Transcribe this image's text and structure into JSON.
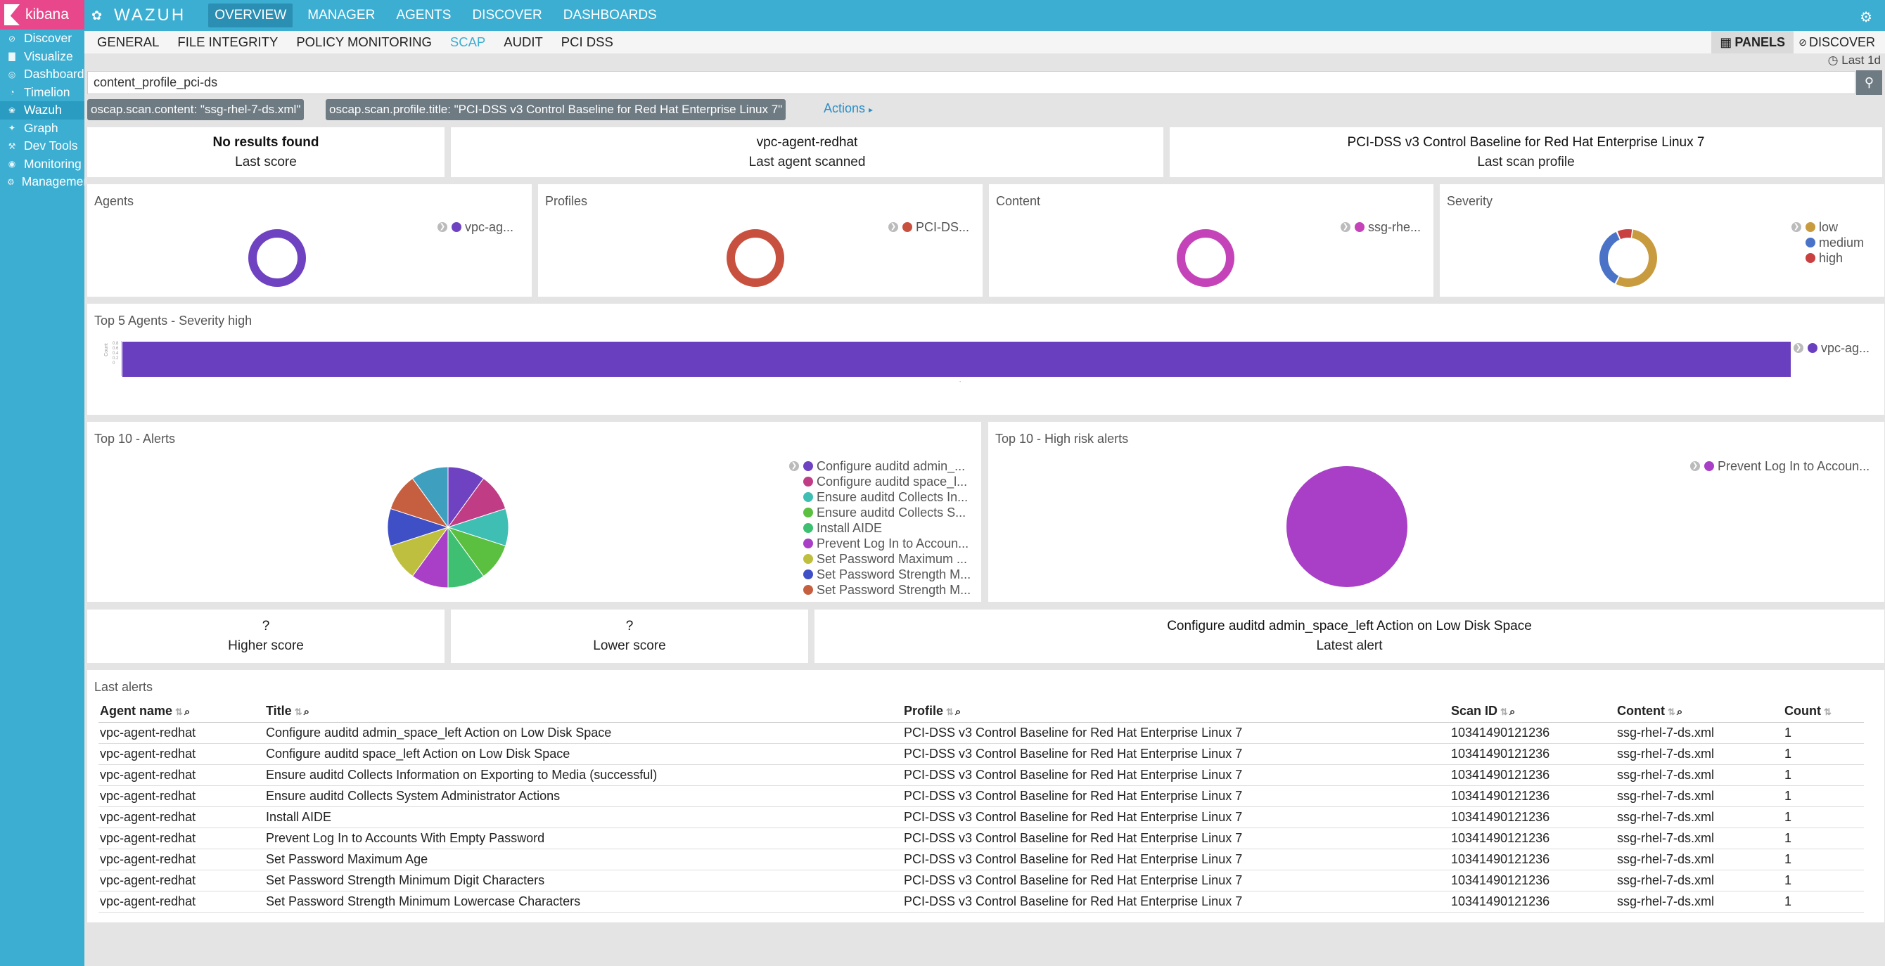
{
  "sidebar": {
    "brand": "kibana",
    "items": [
      {
        "label": "Discover",
        "icon": "compass-icon"
      },
      {
        "label": "Visualize",
        "icon": "bar-chart-icon"
      },
      {
        "label": "Dashboard",
        "icon": "dashboard-icon"
      },
      {
        "label": "Timelion",
        "icon": "timelion-icon"
      },
      {
        "label": "Wazuh",
        "icon": "wazuh-paw-icon"
      },
      {
        "label": "Graph",
        "icon": "graph-icon"
      },
      {
        "label": "Dev Tools",
        "icon": "wrench-icon"
      },
      {
        "label": "Monitoring",
        "icon": "monitoring-icon"
      },
      {
        "label": "Management",
        "icon": "gear-icon"
      }
    ]
  },
  "topbar": {
    "brand": "WAZUH",
    "nav": [
      "OVERVIEW",
      "MANAGER",
      "AGENTS",
      "DISCOVER",
      "DASHBOARDS"
    ]
  },
  "subbar": {
    "tabs": [
      "GENERAL",
      "FILE INTEGRITY",
      "POLICY MONITORING",
      "SCAP",
      "AUDIT",
      "PCI DSS"
    ],
    "panels_label": "PANELS",
    "discover_label": "DISCOVER",
    "time_range": "Last 1d"
  },
  "search": {
    "value": "content_profile_pci-ds"
  },
  "filters": [
    "oscap.scan.content: \"ssg-rhel-7-ds.xml\"",
    "oscap.scan.profile.title: \"PCI-DSS v3 Control Baseline for Red Hat Enterprise Linux 7\""
  ],
  "actions_label": "Actions",
  "metrics_top": [
    {
      "value": "No results found",
      "label": "Last score"
    },
    {
      "value": "vpc-agent-redhat",
      "label": "Last agent scanned"
    },
    {
      "value": "PCI-DSS v3 Control Baseline for Red Hat Enterprise Linux 7",
      "label": "Last scan profile"
    }
  ],
  "donuts": [
    {
      "title": "Agents",
      "legend": [
        {
          "label": "vpc-ag...",
          "color": "#6e42c1"
        }
      ]
    },
    {
      "title": "Profiles",
      "legend": [
        {
          "label": "PCI-DS...",
          "color": "#c8503f"
        }
      ]
    },
    {
      "title": "Content",
      "legend": [
        {
          "label": "ssg-rhe...",
          "color": "#c443b8"
        }
      ]
    },
    {
      "title": "Severity",
      "legend": [
        {
          "label": "low",
          "color": "#c99b3f"
        },
        {
          "label": "medium",
          "color": "#4a73c8"
        },
        {
          "label": "high",
          "color": "#c8403f"
        }
      ]
    }
  ],
  "bar_panel": {
    "title": "Top 5 Agents - Severity high",
    "legend": "vpc-ag...",
    "color": "#6a3fbf",
    "yticks": [
      "0.8",
      "0.6",
      "0.4",
      "0.2",
      "0"
    ]
  },
  "pie_alerts": {
    "title": "Top 10 - Alerts",
    "legend": [
      {
        "label": "Configure auditd admin_...",
        "color": "#6e42c1"
      },
      {
        "label": "Configure auditd space_l...",
        "color": "#c03d86"
      },
      {
        "label": "Ensure auditd Collects In...",
        "color": "#3fbfb3"
      },
      {
        "label": "Ensure auditd Collects S...",
        "color": "#5bbf3f"
      },
      {
        "label": "Install AIDE",
        "color": "#3fbf72"
      },
      {
        "label": "Prevent Log In to Accoun...",
        "color": "#a83fc6"
      },
      {
        "label": "Set Password Maximum ...",
        "color": "#bfbf3f"
      },
      {
        "label": "Set Password Strength M...",
        "color": "#3f4fc6"
      },
      {
        "label": "Set Password Strength M...",
        "color": "#c65f3f"
      }
    ]
  },
  "pie_high": {
    "title": "Top 10 - High risk alerts",
    "legend": [
      {
        "label": "Prevent Log In to Accoun...",
        "color": "#a83fc6"
      }
    ]
  },
  "metrics_bottom": [
    {
      "value": "?",
      "label": "Higher score"
    },
    {
      "value": "?",
      "label": "Lower score"
    },
    {
      "value": "Configure auditd admin_space_left Action on Low Disk Space",
      "label": "Latest alert"
    }
  ],
  "last_alerts": {
    "title": "Last alerts",
    "columns": [
      "Agent name",
      "Title",
      "Profile",
      "Scan ID",
      "Content",
      "Count"
    ],
    "rows": [
      [
        "vpc-agent-redhat",
        "Configure auditd admin_space_left Action on Low Disk Space",
        "PCI-DSS v3 Control Baseline for Red Hat Enterprise Linux 7",
        "10341490121236",
        "ssg-rhel-7-ds.xml",
        "1"
      ],
      [
        "vpc-agent-redhat",
        "Configure auditd space_left Action on Low Disk Space",
        "PCI-DSS v3 Control Baseline for Red Hat Enterprise Linux 7",
        "10341490121236",
        "ssg-rhel-7-ds.xml",
        "1"
      ],
      [
        "vpc-agent-redhat",
        "Ensure auditd Collects Information on Exporting to Media (successful)",
        "PCI-DSS v3 Control Baseline for Red Hat Enterprise Linux 7",
        "10341490121236",
        "ssg-rhel-7-ds.xml",
        "1"
      ],
      [
        "vpc-agent-redhat",
        "Ensure auditd Collects System Administrator Actions",
        "PCI-DSS v3 Control Baseline for Red Hat Enterprise Linux 7",
        "10341490121236",
        "ssg-rhel-7-ds.xml",
        "1"
      ],
      [
        "vpc-agent-redhat",
        "Install AIDE",
        "PCI-DSS v3 Control Baseline for Red Hat Enterprise Linux 7",
        "10341490121236",
        "ssg-rhel-7-ds.xml",
        "1"
      ],
      [
        "vpc-agent-redhat",
        "Prevent Log In to Accounts With Empty Password",
        "PCI-DSS v3 Control Baseline for Red Hat Enterprise Linux 7",
        "10341490121236",
        "ssg-rhel-7-ds.xml",
        "1"
      ],
      [
        "vpc-agent-redhat",
        "Set Password Maximum Age",
        "PCI-DSS v3 Control Baseline for Red Hat Enterprise Linux 7",
        "10341490121236",
        "ssg-rhel-7-ds.xml",
        "1"
      ],
      [
        "vpc-agent-redhat",
        "Set Password Strength Minimum Digit Characters",
        "PCI-DSS v3 Control Baseline for Red Hat Enterprise Linux 7",
        "10341490121236",
        "ssg-rhel-7-ds.xml",
        "1"
      ],
      [
        "vpc-agent-redhat",
        "Set Password Strength Minimum Lowercase Characters",
        "PCI-DSS v3 Control Baseline for Red Hat Enterprise Linux 7",
        "10341490121236",
        "ssg-rhel-7-ds.xml",
        "1"
      ]
    ]
  }
}
